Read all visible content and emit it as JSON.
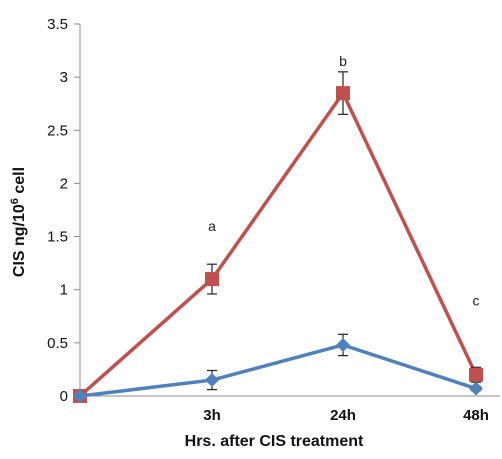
{
  "chart_data": {
    "type": "line",
    "title": "",
    "xlabel": "Hrs. after CIS treatment",
    "ylabel_main": "CIS ng/10",
    "ylabel_sup": "6",
    "ylabel_tail": " cell",
    "categories": [
      "",
      "3h",
      "24h",
      "48h"
    ],
    "ylim": [
      0,
      3.5
    ],
    "yticks": [
      "0",
      "0.5",
      "1",
      "1.5",
      "2",
      "2.5",
      "3",
      "3.5"
    ],
    "grid": false,
    "legend": "none",
    "series": [
      {
        "color": "#C0504D",
        "marker": "square",
        "values": [
          0,
          1.1,
          2.85,
          0.2
        ],
        "errors": [
          0,
          0.14,
          0.2,
          0.07
        ]
      },
      {
        "color": "#4F81BD",
        "marker": "diamond",
        "values": [
          0,
          0.15,
          0.48,
          0.07
        ],
        "errors": [
          0,
          0.09,
          0.1,
          0.02
        ]
      }
    ],
    "annotations": [
      {
        "text": "a",
        "category": 1,
        "y": 1.6
      },
      {
        "text": "b",
        "category": 2,
        "y": 3.15
      },
      {
        "text": "c",
        "category": 3,
        "y": 0.9
      }
    ]
  }
}
